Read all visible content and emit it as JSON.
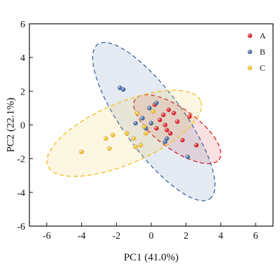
{
  "chart_data": {
    "type": "scatter",
    "title": "",
    "xlabel": "PC1 (41.0%)",
    "ylabel": "PC2 (22.1%)",
    "xlim": [
      -7,
      7
    ],
    "ylim": [
      -6,
      6
    ],
    "xticks": [
      -6,
      -4,
      -2,
      0,
      2,
      4,
      6
    ],
    "yticks": [
      -6,
      -4,
      -2,
      0,
      2,
      4,
      6
    ],
    "tick_labels_x": [
      "-6",
      "-4",
      "-2",
      "0",
      "2",
      "4",
      "6"
    ],
    "tick_labels_y": [
      "-6",
      "-4",
      "-2",
      "0",
      "2",
      "4",
      "6"
    ],
    "grid": false,
    "legend_position": "top-right",
    "series": [
      {
        "name": "A",
        "color": "#e0262a",
        "points": [
          [
            0.2,
            1.2
          ],
          [
            0.7,
            0.6
          ],
          [
            1.0,
            0.9
          ],
          [
            0.5,
            0.3
          ],
          [
            1.3,
            0.7
          ],
          [
            1.5,
            0.2
          ],
          [
            2.2,
            0.5
          ],
          [
            0.8,
            0.0
          ],
          [
            0.3,
            -0.2
          ],
          [
            1.1,
            -0.5
          ],
          [
            1.8,
            -0.9
          ],
          [
            2.6,
            -1.2
          ],
          [
            0.9,
            -0.3
          ]
        ],
        "ellipse": {
          "center": [
            1.5,
            -0.25
          ],
          "semi_major": 3.0,
          "semi_minor": 1.2,
          "angle_deg": -37
        }
      },
      {
        "name": "B",
        "color": "#4a6fa5",
        "points": [
          [
            -1.8,
            2.2
          ],
          [
            -1.6,
            2.1
          ],
          [
            -0.5,
            0.4
          ],
          [
            -0.3,
            -0.2
          ],
          [
            0.0,
            0.1
          ],
          [
            0.3,
            1.3
          ],
          [
            -0.1,
            1.0
          ],
          [
            0.8,
            -1.0
          ],
          [
            0.9,
            -0.8
          ],
          [
            2.1,
            -1.9
          ],
          [
            -0.9,
            0.1
          ]
        ],
        "ellipse": {
          "center": [
            0.15,
            0.2
          ],
          "semi_major": 5.6,
          "semi_minor": 1.75,
          "angle_deg": -55
        }
      },
      {
        "name": "C",
        "color": "#f2c12e",
        "points": [
          [
            -4.0,
            -1.6
          ],
          [
            -2.4,
            -1.4
          ],
          [
            -2.2,
            -0.6
          ],
          [
            -1.4,
            -0.5
          ],
          [
            -0.8,
            0.7
          ],
          [
            -0.4,
            -0.1
          ],
          [
            -1.0,
            -0.8
          ],
          [
            -0.9,
            -1.3
          ],
          [
            -0.3,
            -0.5
          ],
          [
            -0.6,
            -1.2
          ],
          [
            -2.6,
            -0.8
          ],
          [
            0.1,
            0.8
          ]
        ],
        "ellipse": {
          "center": [
            -1.55,
            -0.5
          ],
          "semi_major": 4.8,
          "semi_minor": 1.8,
          "angle_deg": 24
        }
      }
    ]
  }
}
